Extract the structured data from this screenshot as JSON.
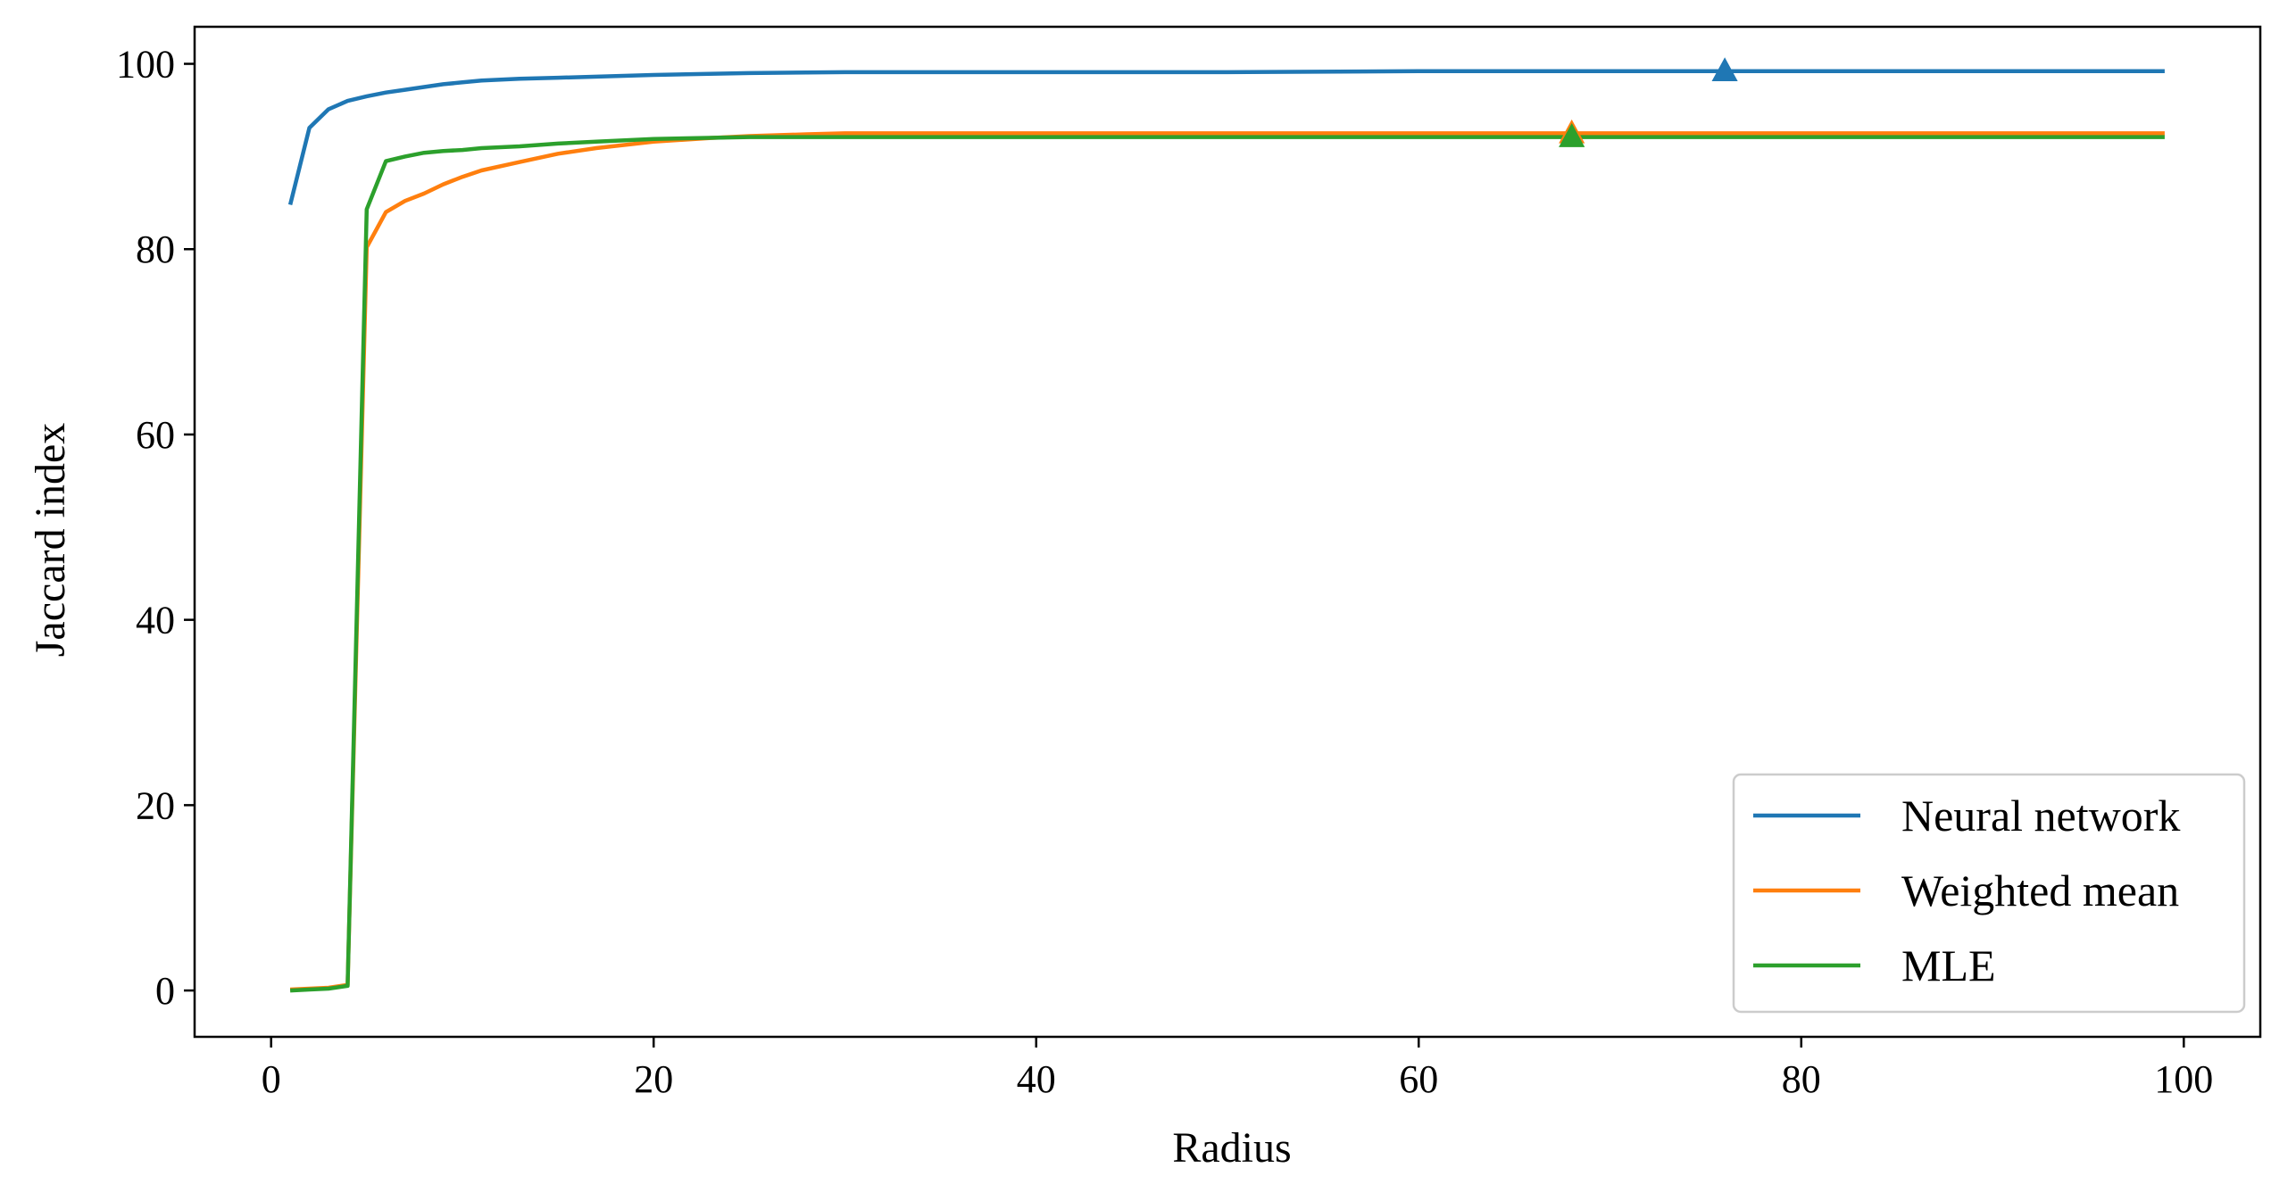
{
  "chart_data": {
    "type": "line",
    "title": "",
    "xlabel": "Radius",
    "ylabel": "Jaccard index",
    "xlim": [
      -4,
      104
    ],
    "ylim": [
      -5,
      104
    ],
    "xticks": [
      0,
      20,
      40,
      60,
      80,
      100
    ],
    "yticks": [
      0,
      20,
      40,
      60,
      80,
      100
    ],
    "grid": false,
    "legend_position": "bottom-right",
    "series": [
      {
        "name": "Neural network",
        "color": "#1f77b4",
        "x": [
          1,
          2,
          3,
          4,
          5,
          6,
          7,
          8,
          9,
          10,
          11,
          13,
          15,
          20,
          25,
          30,
          40,
          50,
          60,
          70,
          80,
          90,
          99
        ],
        "y": [
          84.8,
          93.1,
          95.1,
          96.0,
          96.5,
          96.9,
          97.2,
          97.5,
          97.8,
          98.0,
          98.2,
          98.4,
          98.5,
          98.8,
          99.0,
          99.1,
          99.1,
          99.1,
          99.2,
          99.2,
          99.2,
          99.2,
          99.2
        ],
        "marker": {
          "x": 76,
          "y": 99.2,
          "shape": "triangle"
        }
      },
      {
        "name": "Weighted mean",
        "color": "#ff7f0e",
        "x": [
          1,
          2,
          3,
          4,
          5,
          6,
          7,
          8,
          9,
          10,
          11,
          13,
          15,
          17,
          20,
          23,
          25,
          28,
          30,
          40,
          50,
          60,
          70,
          80,
          90,
          99
        ],
        "y": [
          0.1,
          0.2,
          0.3,
          0.6,
          80.2,
          84.0,
          85.2,
          86.0,
          87.0,
          87.8,
          88.5,
          89.4,
          90.3,
          90.9,
          91.6,
          92.0,
          92.2,
          92.4,
          92.5,
          92.5,
          92.5,
          92.5,
          92.5,
          92.5,
          92.5,
          92.5
        ],
        "marker": {
          "x": 68,
          "y": 92.5,
          "shape": "triangle"
        }
      },
      {
        "name": "MLE",
        "color": "#2ca02c",
        "x": [
          1,
          2,
          3,
          4,
          5,
          6,
          7,
          8,
          9,
          10,
          11,
          13,
          15,
          17,
          20,
          25,
          30,
          40,
          50,
          60,
          70,
          80,
          90,
          99
        ],
        "y": [
          0.0,
          0.1,
          0.2,
          0.5,
          84.3,
          89.5,
          90.0,
          90.4,
          90.6,
          90.7,
          90.9,
          91.1,
          91.4,
          91.6,
          91.9,
          92.1,
          92.1,
          92.1,
          92.1,
          92.1,
          92.1,
          92.1,
          92.1,
          92.1
        ],
        "marker": {
          "x": 68,
          "y": 92.1,
          "shape": "triangle"
        }
      }
    ]
  }
}
